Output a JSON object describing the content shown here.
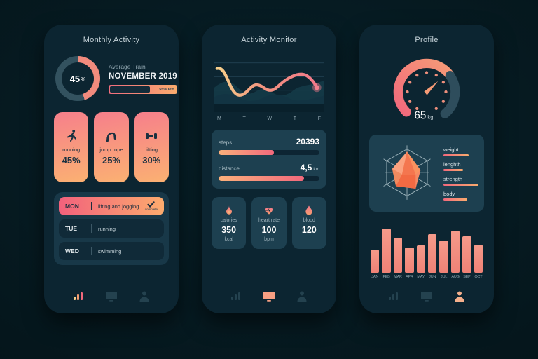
{
  "palette": {
    "pink": "#f26d7e",
    "salmon": "#f28b7d",
    "orange": "#f9ac6e",
    "yellow": "#f7d08b",
    "ring_dark": "#33525f"
  },
  "screen1": {
    "title": "Monthly Activity",
    "donut": {
      "percent": 45,
      "value": "45",
      "sign": "%"
    },
    "average": {
      "label": "Average Train",
      "month": "NOVEMBER 2019",
      "remaining": "55% left",
      "fill": "58%"
    },
    "cards": [
      {
        "icon": "runner-icon",
        "label": "running",
        "value": "45%"
      },
      {
        "icon": "jump-rope-icon",
        "label": "jump rope",
        "value": "25%"
      },
      {
        "icon": "dumbbell-icon",
        "label": "lifting",
        "value": "30%"
      }
    ],
    "schedule": [
      {
        "day": "MON",
        "activity": "lifting and jogging",
        "status": "complete"
      },
      {
        "day": "TUE",
        "activity": "running"
      },
      {
        "day": "WED",
        "activity": "swimming"
      }
    ]
  },
  "screen2": {
    "title": "Activity Monitor",
    "chart": {
      "days": [
        "M",
        "T",
        "W",
        "T",
        "F"
      ]
    },
    "metrics": [
      {
        "label": "steps",
        "value": "20393",
        "unit": "",
        "fill": "55%"
      },
      {
        "label": "distance",
        "value": "4,5",
        "unit": "km",
        "fill": "85%"
      }
    ],
    "stats": [
      {
        "icon": "flame-icon",
        "label": "calories",
        "value": "350",
        "unit": "kcal"
      },
      {
        "icon": "heart-pulse-icon",
        "label": "heart rate",
        "value": "100",
        "unit": "bpm"
      },
      {
        "icon": "blood-drop-icon",
        "label": "blood",
        "value": "120",
        "unit": ""
      }
    ]
  },
  "screen3": {
    "title": "Profile",
    "gauge": {
      "value": "65",
      "unit": "kg"
    },
    "radar": {
      "legend": [
        {
          "label": "weight",
          "bar": "36px"
        },
        {
          "label": "lenghth",
          "bar": "28px"
        },
        {
          "label": "strength",
          "bar": "50px"
        },
        {
          "label": "body",
          "bar": "34px"
        }
      ]
    },
    "chart_months": {
      "type": "bar",
      "categories": [
        "JAN",
        "FEB",
        "MAR",
        "APR",
        "MAY",
        "JUN",
        "JUL",
        "AUG",
        "SEP",
        "OCT"
      ],
      "values": [
        46,
        88,
        70,
        50,
        54,
        76,
        64,
        84,
        72,
        56
      ]
    }
  },
  "nav": {
    "icons": [
      "stats-icon",
      "monitor-icon",
      "profile-icon"
    ],
    "active_per_screen": [
      0,
      1,
      2
    ]
  }
}
